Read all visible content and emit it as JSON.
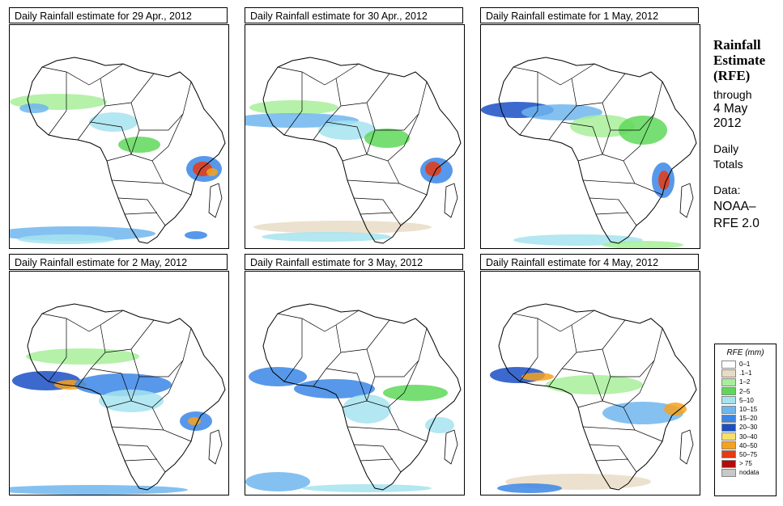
{
  "panels": [
    {
      "title": "Daily Rainfall estimate for  29 Apr., 2012"
    },
    {
      "title": "Daily Rainfall estimate for  30 Apr., 2012"
    },
    {
      "title": "Daily Rainfall estimate for  1 May, 2012"
    },
    {
      "title": "Daily Rainfall estimate for  2 May, 2012"
    },
    {
      "title": "Daily Rainfall estimate for  3 May, 2012"
    },
    {
      "title": "Daily Rainfall estimate for  4 May, 2012"
    }
  ],
  "sidebar": {
    "heading_line1": "Rainfall",
    "heading_line2": "Estimate",
    "heading_line3": "(RFE)",
    "through": "through",
    "date_line1": "4 May",
    "date_line2": "2012",
    "daily_line1": "Daily",
    "daily_line2": "Totals",
    "data_label": "Data:",
    "source_line1": "NOAA–",
    "source_line2": "RFE 2.0"
  },
  "legend": {
    "title": "RFE (mm)",
    "items": [
      {
        "label": "0–1",
        "color": "#ffffff"
      },
      {
        "label": ".1–1",
        "color": "#e9dcc6"
      },
      {
        "label": "1–2",
        "color": "#a8ee9a"
      },
      {
        "label": "2–5",
        "color": "#5fd85a"
      },
      {
        "label": "5–10",
        "color": "#a6e3ef"
      },
      {
        "label": "10–15",
        "color": "#6fb6ee"
      },
      {
        "label": "15–20",
        "color": "#3b86e6"
      },
      {
        "label": "20–30",
        "color": "#1a4fc4"
      },
      {
        "label": "30–40",
        "color": "#f5e06a"
      },
      {
        "label": "40–50",
        "color": "#f6a21e"
      },
      {
        "label": "50–75",
        "color": "#e63a12"
      },
      {
        "label": "> 75",
        "color": "#b40a0a"
      },
      {
        "label": "nodata",
        "color": "#c8c8c8"
      }
    ]
  }
}
